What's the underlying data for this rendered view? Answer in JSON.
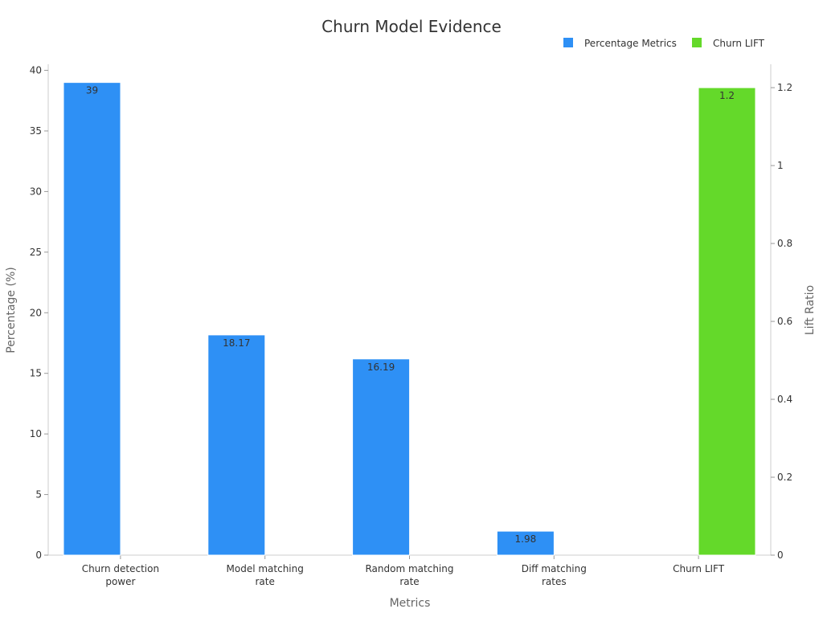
{
  "chart_data": {
    "type": "bar",
    "title": "Churn Model Evidence",
    "xlabel": "Metrics",
    "ylabel_left": "Percentage (%)",
    "ylabel_right": "Lift Ratio",
    "categories": [
      [
        "Churn detection",
        "power"
      ],
      [
        "Model matching",
        "rate"
      ],
      [
        "Random matching",
        "rate"
      ],
      [
        "Diff matching",
        "rates"
      ],
      [
        "Churn LIFT"
      ]
    ],
    "ylim_left": [
      0,
      40.5
    ],
    "ylim_right": [
      0,
      1.26
    ],
    "yticks_left": [
      "0",
      "5",
      "10",
      "15",
      "20",
      "25",
      "30",
      "35",
      "40"
    ],
    "yticks_right": [
      "0",
      "0.2",
      "0.4",
      "0.6",
      "0.8",
      "1",
      "1.2"
    ],
    "legend_position": "top-right",
    "grid": false,
    "series": [
      {
        "name": "Percentage Metrics",
        "axis": "left",
        "color": "#2e90f5",
        "values": [
          39,
          18.17,
          16.19,
          1.98,
          null
        ],
        "labels": [
          "39",
          "18.17",
          "16.19",
          "1.98",
          null
        ]
      },
      {
        "name": "Churn LIFT",
        "axis": "right",
        "color": "#64d92a",
        "values": [
          null,
          null,
          null,
          null,
          1.2
        ],
        "labels": [
          null,
          null,
          null,
          null,
          "1.2"
        ]
      }
    ]
  }
}
